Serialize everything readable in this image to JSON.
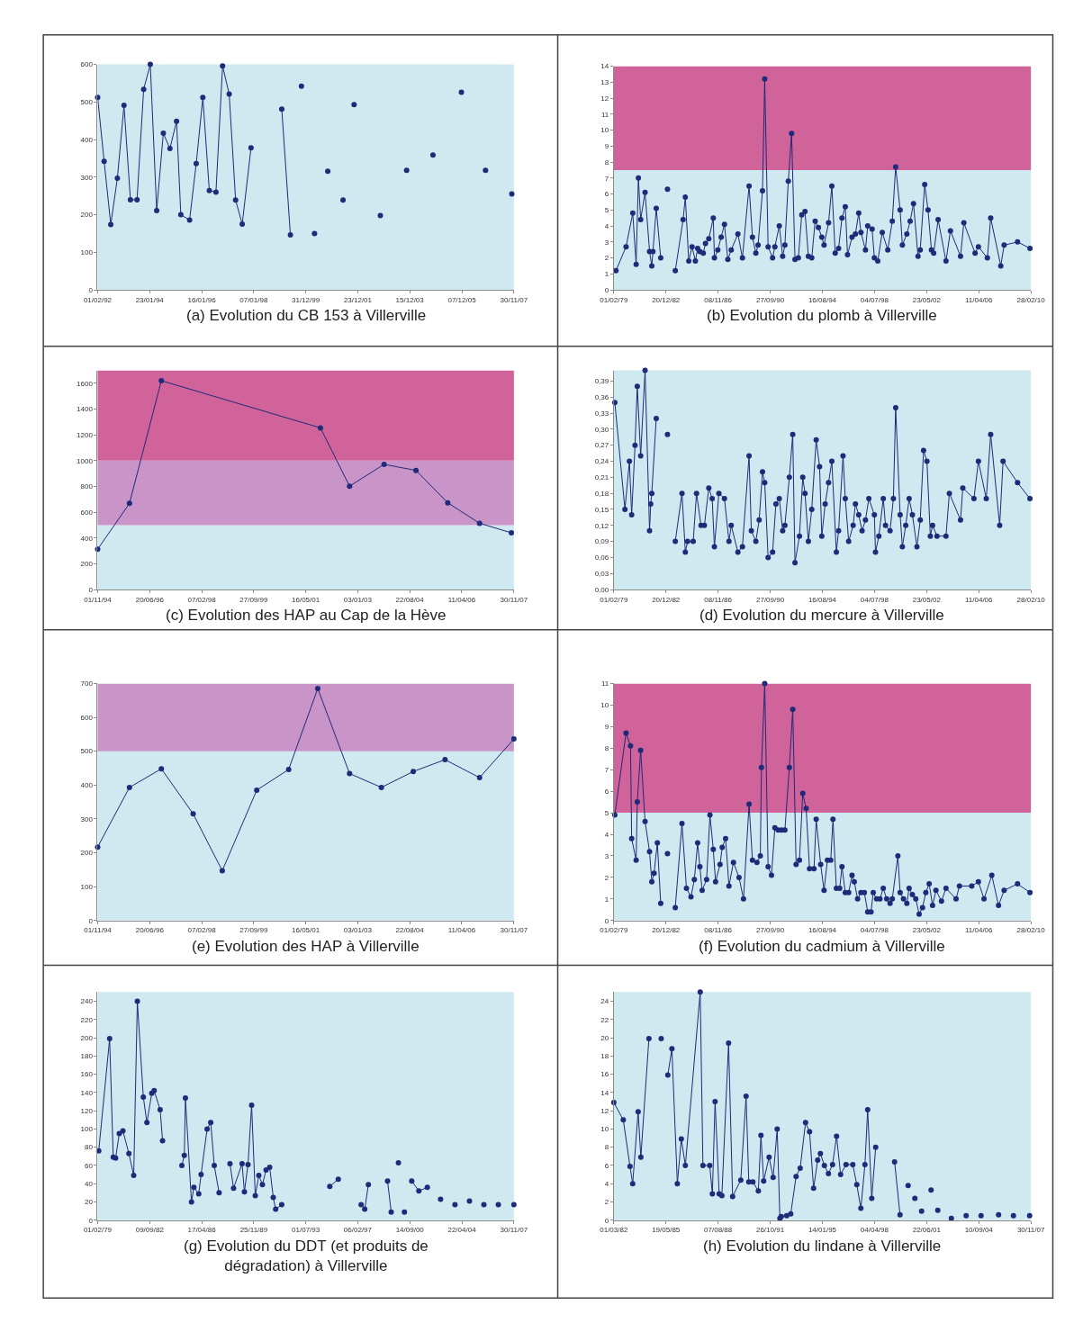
{
  "chart_data": [
    {
      "type": "line",
      "title": "(a) Evolution du CB 153 à Villerville",
      "marker": "circle",
      "line_style": "solid",
      "xlim": [
        "1992-02-01",
        "2007-11-30"
      ],
      "ylim": [
        0,
        600
      ],
      "xticks": [
        {
          "value": "1992-02-01",
          "label": "01/02/92"
        },
        {
          "value": "1994-01-23",
          "label": "23/01/94"
        },
        {
          "value": "1996-01-16",
          "label": "16/01/96"
        },
        {
          "value": "1998-01-07",
          "label": "07/01/98"
        },
        {
          "value": "1999-12-31",
          "label": "31/12/99"
        },
        {
          "value": "2001-12-23",
          "label": "23/12/01"
        },
        {
          "value": "2003-12-15",
          "label": "15/12/03"
        },
        {
          "value": "2005-12-07",
          "label": "07/12/05"
        },
        {
          "value": "2007-11-30",
          "label": "30/11/07"
        }
      ],
      "yticks": [
        0,
        100,
        200,
        300,
        400,
        500,
        600
      ],
      "series": [
        {
          "color": "#1f2a78",
          "x": [
            "1992-02",
            "1992-05",
            "1992-08",
            "1992-11",
            "1993-02",
            "1993-05",
            "1993-08",
            "1993-11",
            "1994-02",
            "1994-05",
            "1994-08",
            "1994-11",
            "1995-02",
            "1995-04",
            "1995-08",
            "1995-11",
            "1996-02",
            "1996-05",
            "1996-08",
            "1996-11",
            "1997-02",
            "1997-05",
            "1997-08",
            "1997-12"
          ],
          "values": [
            512,
            342,
            174,
            297,
            491,
            240,
            240,
            534,
            600,
            211,
            417,
            376,
            449,
            200,
            186,
            336,
            512,
            264,
            260,
            596,
            521,
            239,
            175,
            378
          ]
        },
        {
          "color": "#1f2a78",
          "x": [
            "1999-02",
            "1999-06"
          ],
          "values": [
            481,
            146
          ]
        },
        {
          "type": "scatter",
          "color": "#1f2a78",
          "x": [
            "1999-11",
            "2000-05",
            "2000-11",
            "2001-06",
            "2001-11",
            "2002-11",
            "2003-11",
            "2004-11",
            "2005-12",
            "2006-11",
            "2007-11"
          ],
          "values": [
            542,
            150,
            316,
            239,
            493,
            198,
            318,
            359,
            526,
            318,
            255
          ]
        }
      ]
    },
    {
      "type": "line",
      "title": "(b) Evolution du plomb à Villerville",
      "marker": "circle",
      "line_style": "solid",
      "xlim": [
        "1979-02-01",
        "2010-02-28"
      ],
      "ylim": [
        0,
        14
      ],
      "xticks": [
        {
          "value": "1979-02-01",
          "label": "01/02/79"
        },
        {
          "value": "1982-12-20",
          "label": "20/12/82"
        },
        {
          "value": "1986-11-08",
          "label": "08/11/86"
        },
        {
          "value": "1990-09-27",
          "label": "27/09/90"
        },
        {
          "value": "1994-08-16",
          "label": "16/08/94"
        },
        {
          "value": "1998-07-04",
          "label": "04/07/98"
        },
        {
          "value": "2002-05-23",
          "label": "23/05/02"
        },
        {
          "value": "2006-04-11",
          "label": "11/04/06"
        },
        {
          "value": "2010-02-28",
          "label": "28/02/10"
        }
      ],
      "yticks": [
        0,
        1,
        2,
        3,
        4,
        5,
        6,
        7,
        8,
        9,
        10,
        11,
        12,
        13,
        14
      ],
      "bands": [
        {
          "axis": "y",
          "from": 0,
          "to": 7.5,
          "color": "#cfe9f0"
        },
        {
          "axis": "y",
          "from": 7.5,
          "to": 14,
          "color": "#d0639a"
        }
      ],
      "series": [
        {
          "color": "#1f2a78",
          "x": [
            "1979-04",
            "1980-01",
            "1980-07",
            "1980-10",
            "1980-12",
            "1981-02",
            "1981-06",
            "1981-10",
            "1981-12",
            "1982-01",
            "1982-04",
            "1982-08"
          ],
          "values": [
            1.2,
            2.7,
            4.8,
            1.6,
            7.0,
            4.4,
            6.1,
            2.4,
            1.5,
            2.4,
            5.1,
            2.0
          ]
        },
        {
          "type": "scatter",
          "color": "#1f2a78",
          "x": [
            "1983-02"
          ],
          "values": [
            6.3
          ]
        },
        {
          "color": "#1f2a78",
          "x": [
            "1983-09",
            "1984-04",
            "1984-06",
            "1984-09",
            "1984-12",
            "1985-03",
            "1985-05",
            "1985-07",
            "1985-10",
            "1985-12",
            "1986-03",
            "1986-07",
            "1986-08",
            "1986-11",
            "1987-02",
            "1987-05",
            "1987-08",
            "1987-11",
            "1988-05",
            "1988-09",
            "1989-03",
            "1989-06",
            "1989-09",
            "1989-11",
            "1990-03",
            "1990-05",
            "1990-08",
            "1990-12",
            "1991-02",
            "1991-06",
            "1991-09",
            "1991-11",
            "1992-02",
            "1992-05",
            "1992-08",
            "1992-11",
            "1993-02",
            "1993-05",
            "1993-08",
            "1993-11",
            "1994-02",
            "1994-05",
            "1994-08",
            "1994-10",
            "1995-02",
            "1995-05",
            "1995-08",
            "1995-11",
            "1996-02",
            "1996-05",
            "1996-07",
            "1996-11",
            "1997-02",
            "1997-05",
            "1997-07",
            "1997-11",
            "1998-01",
            "1998-05",
            "1998-07",
            "1998-10",
            "1999-02",
            "1999-07",
            "1999-11",
            "2000-02",
            "2000-06",
            "2000-08",
            "2000-12",
            "2001-03",
            "2001-06",
            "2001-10",
            "2001-12",
            "2002-04",
            "2002-07",
            "2002-10",
            "2002-12",
            "2003-04",
            "2003-11",
            "2004-03",
            "2004-12",
            "2005-03",
            "2006-01",
            "2006-04",
            "2006-12",
            "2007-03",
            "2007-12",
            "2008-03",
            "2009-03",
            "2010-02"
          ],
          "values": [
            1.2,
            4.4,
            5.8,
            1.8,
            2.7,
            1.8,
            2.6,
            2.4,
            2.3,
            2.9,
            3.2,
            4.5,
            2.0,
            2.5,
            3.3,
            4.1,
            1.9,
            2.5,
            3.5,
            2.0,
            6.5,
            3.3,
            2.3,
            2.8,
            6.2,
            13.2,
            2.7,
            2.0,
            2.7,
            4.0,
            2.1,
            2.8,
            6.8,
            9.8,
            1.9,
            2.0,
            4.7,
            4.9,
            2.1,
            2.0,
            4.3,
            3.9,
            3.3,
            2.8,
            4.2,
            6.5,
            2.3,
            2.6,
            4.5,
            5.2,
            2.2,
            3.3,
            3.5,
            4.8,
            3.6,
            2.5,
            4.0,
            3.8,
            2.0,
            1.8,
            3.6,
            2.5,
            4.3,
            7.7,
            5.0,
            2.8,
            3.5,
            4.3,
            5.4,
            2.1,
            2.5,
            6.6,
            5.0,
            2.5,
            2.3,
            4.4,
            1.8,
            3.7,
            2.1,
            4.2,
            2.3,
            2.7,
            2.0,
            4.5,
            1.5,
            2.8,
            3.0,
            2.6
          ]
        }
      ]
    },
    {
      "type": "line",
      "title": "(c) Evolution des HAP au Cap de la Hève",
      "marker": "circle",
      "line_style": "solid",
      "xlim": [
        "1994-11-01",
        "2007-11-30"
      ],
      "ylim": [
        0,
        1700
      ],
      "xticks": [
        {
          "value": "1994-11-01",
          "label": "01/11/94"
        },
        {
          "value": "1996-06-20",
          "label": "20/06/96"
        },
        {
          "value": "1998-02-07",
          "label": "07/02/98"
        },
        {
          "value": "1999-09-27",
          "label": "27/09/99"
        },
        {
          "value": "2001-05-16",
          "label": "16/05/01"
        },
        {
          "value": "2003-01-03",
          "label": "03/01/03"
        },
        {
          "value": "2004-08-22",
          "label": "22/08/04"
        },
        {
          "value": "2006-04-11",
          "label": "11/04/06"
        },
        {
          "value": "2007-11-30",
          "label": "30/11/07"
        }
      ],
      "yticks": [
        0,
        200,
        400,
        600,
        800,
        1000,
        1200,
        1400,
        1600
      ],
      "bands": [
        {
          "axis": "y",
          "from": 0,
          "to": 500,
          "color": "#cfe9f0"
        },
        {
          "axis": "y",
          "from": 500,
          "to": 1000,
          "color": "#c994c7"
        },
        {
          "axis": "y",
          "from": 1000,
          "to": 1700,
          "color": "#d0639a"
        }
      ],
      "series": [
        {
          "color": "#1f2a78",
          "x": [
            "1994-11",
            "1995-11",
            "1996-11",
            "2001-11",
            "2002-10",
            "2003-11",
            "2004-11",
            "2005-11",
            "2006-11",
            "2007-11"
          ],
          "values": [
            313,
            668,
            1620,
            1254,
            802,
            971,
            924,
            673,
            514,
            440
          ]
        }
      ]
    },
    {
      "type": "line",
      "title": "(d) Evolution du mercure à Villerville",
      "marker": "circle",
      "line_style": "solid",
      "xlim": [
        "1979-02-01",
        "2010-02-28"
      ],
      "ylim": [
        0,
        0.41
      ],
      "xticks": [
        {
          "value": "1979-02-01",
          "label": "01/02/79"
        },
        {
          "value": "1982-12-20",
          "label": "20/12/82"
        },
        {
          "value": "1986-11-08",
          "label": "08/11/86"
        },
        {
          "value": "1990-09-27",
          "label": "27/09/90"
        },
        {
          "value": "1994-08-16",
          "label": "16/08/94"
        },
        {
          "value": "1998-07-04",
          "label": "04/07/98"
        },
        {
          "value": "2002-05-23",
          "label": "23/05/02"
        },
        {
          "value": "2006-04-11",
          "label": "11/04/06"
        },
        {
          "value": "2010-02-28",
          "label": "28/02/10"
        }
      ],
      "yticks": [
        {
          "value": 0,
          "label": "0,00"
        },
        {
          "value": 0.03,
          "label": "0,03"
        },
        {
          "value": 0.06,
          "label": "0,06"
        },
        {
          "value": 0.09,
          "label": "0,09"
        },
        {
          "value": 0.12,
          "label": "0,12"
        },
        {
          "value": 0.15,
          "label": "0,15"
        },
        {
          "value": 0.18,
          "label": "0,18"
        },
        {
          "value": 0.21,
          "label": "0,21"
        },
        {
          "value": 0.24,
          "label": "0,24"
        },
        {
          "value": 0.27,
          "label": "0,27"
        },
        {
          "value": 0.3,
          "label": "0,30"
        },
        {
          "value": 0.33,
          "label": "0,33"
        },
        {
          "value": 0.36,
          "label": "0,36"
        },
        {
          "value": 0.39,
          "label": "0,39"
        }
      ],
      "series": [
        {
          "color": "#1f2a78",
          "x": [
            "1979-03",
            "1979-12",
            "1980-04",
            "1980-06",
            "1980-09",
            "1980-11",
            "1981-02",
            "1981-06",
            "1981-10",
            "1981-11",
            "1981-12",
            "1982-04"
          ],
          "values": [
            0.35,
            0.15,
            0.24,
            0.14,
            0.27,
            0.38,
            0.25,
            0.41,
            0.11,
            0.16,
            0.18,
            0.32
          ]
        },
        {
          "type": "scatter",
          "color": "#1f2a78",
          "x": [
            "1983-02"
          ],
          "values": [
            0.29
          ]
        },
        {
          "color": "#1f2a78",
          "x": [
            "1983-09",
            "1984-03",
            "1984-06",
            "1984-08",
            "1985-01",
            "1985-04",
            "1985-08",
            "1985-11",
            "1986-03",
            "1986-06",
            "1986-08",
            "1986-12",
            "1987-05",
            "1987-09",
            "1987-11",
            "1988-05",
            "1988-09",
            "1989-03",
            "1989-05",
            "1989-09",
            "1989-12",
            "1990-03",
            "1990-05",
            "1990-08",
            "1990-12",
            "1991-03",
            "1991-06",
            "1991-09",
            "1991-11",
            "1992-03",
            "1992-06",
            "1992-08",
            "1992-12",
            "1993-03",
            "1993-05",
            "1993-08",
            "1993-11",
            "1994-03",
            "1994-06",
            "1994-08",
            "1994-11",
            "1995-02",
            "1995-05",
            "1995-09",
            "1995-11",
            "1996-03",
            "1996-05",
            "1996-08",
            "1996-12",
            "1997-02",
            "1997-05",
            "1997-08",
            "1997-11",
            "1998-02",
            "1998-07",
            "1998-08",
            "1998-11",
            "1999-03",
            "1999-05",
            "1999-09",
            "1999-12",
            "2000-02",
            "2000-06",
            "2000-08",
            "2000-11",
            "2001-02",
            "2001-05",
            "2001-09",
            "2001-12",
            "2002-03",
            "2002-06",
            "2002-09",
            "2002-11",
            "2003-03",
            "2003-11",
            "2004-02",
            "2004-12",
            "2005-02",
            "2005-12",
            "2006-04",
            "2006-11",
            "2007-03",
            "2007-11",
            "2008-02",
            "2009-03",
            "2010-02"
          ],
          "values": [
            0.09,
            0.18,
            0.07,
            0.09,
            0.09,
            0.18,
            0.12,
            0.12,
            0.19,
            0.17,
            0.08,
            0.18,
            0.17,
            0.09,
            0.12,
            0.07,
            0.08,
            0.25,
            0.11,
            0.09,
            0.13,
            0.22,
            0.2,
            0.06,
            0.07,
            0.16,
            0.17,
            0.11,
            0.12,
            0.21,
            0.29,
            0.05,
            0.1,
            0.21,
            0.18,
            0.09,
            0.15,
            0.28,
            0.23,
            0.1,
            0.16,
            0.2,
            0.24,
            0.07,
            0.11,
            0.25,
            0.17,
            0.09,
            0.12,
            0.16,
            0.14,
            0.11,
            0.13,
            0.17,
            0.14,
            0.07,
            0.1,
            0.17,
            0.12,
            0.11,
            0.17,
            0.34,
            0.14,
            0.08,
            0.12,
            0.17,
            0.14,
            0.08,
            0.13,
            0.26,
            0.24,
            0.1,
            0.12,
            0.1,
            0.1,
            0.18,
            0.13,
            0.19,
            0.17,
            0.24,
            0.17,
            0.29,
            0.12,
            0.24,
            0.2,
            0.17
          ]
        }
      ]
    },
    {
      "type": "line",
      "title": "(e) Evolution des HAP à Villerville",
      "marker": "circle",
      "line_style": "solid",
      "xlim": [
        "1994-11-01",
        "2007-11-30"
      ],
      "ylim": [
        0,
        700
      ],
      "xticks": [
        {
          "value": "1994-11-01",
          "label": "01/11/94"
        },
        {
          "value": "1996-06-20",
          "label": "20/06/96"
        },
        {
          "value": "1998-02-07",
          "label": "07/02/98"
        },
        {
          "value": "1999-09-27",
          "label": "27/09/99"
        },
        {
          "value": "2001-05-16",
          "label": "16/05/01"
        },
        {
          "value": "2003-01-03",
          "label": "03/01/03"
        },
        {
          "value": "2004-08-22",
          "label": "22/08/04"
        },
        {
          "value": "2006-04-11",
          "label": "11/04/06"
        },
        {
          "value": "2007-11-30",
          "label": "30/11/07"
        }
      ],
      "yticks": [
        0,
        100,
        200,
        300,
        400,
        500,
        600,
        700
      ],
      "bands": [
        {
          "axis": "y",
          "from": 0,
          "to": 500,
          "color": "#cfe9f0"
        },
        {
          "axis": "y",
          "from": 500,
          "to": 700,
          "color": "#c994c7"
        }
      ],
      "series": [
        {
          "color": "#1f2a78",
          "x": [
            "1994-11",
            "1995-11",
            "1996-11",
            "1997-11",
            "1998-10",
            "1999-11",
            "2000-11",
            "2001-10",
            "2002-10",
            "2003-10",
            "2004-10",
            "2005-10",
            "2006-11",
            "2007-11-30"
          ],
          "values": [
            217,
            393,
            448,
            315,
            147,
            385,
            446,
            685,
            434,
            393,
            440,
            475,
            422,
            536
          ]
        }
      ]
    },
    {
      "type": "line",
      "title": "(f) Evolution du cadmium à Villerville",
      "marker": "circle",
      "line_style": "solid",
      "xlim": [
        "1979-02-01",
        "2010-02-28"
      ],
      "ylim": [
        0,
        11
      ],
      "xticks": [
        {
          "value": "1979-02-01",
          "label": "01/02/79"
        },
        {
          "value": "1982-12-20",
          "label": "20/12/82"
        },
        {
          "value": "1986-11-08",
          "label": "08/11/86"
        },
        {
          "value": "1990-09-27",
          "label": "27/09/90"
        },
        {
          "value": "1994-08-16",
          "label": "16/08/94"
        },
        {
          "value": "1998-07-04",
          "label": "04/07/98"
        },
        {
          "value": "2002-05-23",
          "label": "23/05/02"
        },
        {
          "value": "2006-04-11",
          "label": "11/04/06"
        },
        {
          "value": "2010-02-28",
          "label": "28/02/10"
        }
      ],
      "yticks": [
        0,
        1,
        2,
        3,
        4,
        5,
        6,
        7,
        8,
        9,
        10,
        11
      ],
      "bands": [
        {
          "axis": "y",
          "from": 0,
          "to": 5,
          "color": "#cfe9f0"
        },
        {
          "axis": "y",
          "from": 5,
          "to": 11,
          "color": "#d0639a"
        }
      ],
      "series": [
        {
          "color": "#1f2a78",
          "x": [
            "1979-03",
            "1980-01",
            "1980-05",
            "1980-06",
            "1980-10",
            "1980-11",
            "1981-02",
            "1981-06",
            "1981-10",
            "1981-12",
            "1982-02",
            "1982-05",
            "1982-08"
          ],
          "values": [
            4.9,
            8.7,
            8.1,
            3.8,
            2.8,
            5.5,
            7.9,
            4.6,
            3.2,
            1.8,
            2.2,
            3.6,
            0.8
          ]
        },
        {
          "type": "scatter",
          "color": "#1f2a78",
          "x": [
            "1983-02"
          ],
          "values": [
            3.1
          ]
        },
        {
          "color": "#1f2a78",
          "x": [
            "1983-09",
            "1984-03",
            "1984-07",
            "1984-11",
            "1985-02",
            "1985-05",
            "1985-07",
            "1985-09",
            "1986-01",
            "1986-04",
            "1986-07",
            "1986-09",
            "1987-01",
            "1987-03",
            "1987-06",
            "1987-09",
            "1988-01",
            "1988-06",
            "1988-10",
            "1989-03",
            "1989-06",
            "1989-10",
            "1990-01",
            "1990-02",
            "1990-05",
            "1990-08",
            "1990-11",
            "1991-02",
            "1991-05",
            "1991-08",
            "1991-11",
            "1992-03",
            "1992-06",
            "1992-09",
            "1992-12",
            "1993-03",
            "1993-06",
            "1993-09",
            "1994-01",
            "1994-03",
            "1994-07",
            "1994-10",
            "1995-01",
            "1995-04",
            "1995-06",
            "1995-09",
            "1995-12",
            "1996-02",
            "1996-05",
            "1996-08",
            "1996-11",
            "1997-01",
            "1997-04",
            "1997-07",
            "1997-10",
            "1998-01",
            "1998-04",
            "1998-06",
            "1998-09",
            "1998-12",
            "1999-03",
            "1999-06",
            "1999-09",
            "1999-11",
            "2000-04",
            "2000-06",
            "2000-09",
            "2000-12",
            "2001-02",
            "2001-05",
            "2001-08",
            "2001-11",
            "2002-02",
            "2002-05",
            "2002-08",
            "2002-11",
            "2003-02",
            "2003-07",
            "2003-11",
            "2004-08",
            "2004-11",
            "2005-10",
            "2006-04",
            "2006-09",
            "2007-04",
            "2007-10",
            "2008-03",
            "2009-03",
            "2010-02"
          ],
          "values": [
            0.6,
            4.5,
            1.5,
            1.1,
            1.9,
            3.6,
            2.5,
            1.4,
            1.9,
            4.9,
            3.3,
            1.8,
            2.6,
            3.4,
            3.8,
            1.6,
            2.7,
            2.0,
            1.0,
            5.4,
            2.8,
            2.7,
            3.0,
            7.1,
            11.0,
            2.5,
            2.1,
            4.3,
            4.2,
            4.2,
            4.2,
            7.1,
            9.8,
            2.6,
            2.8,
            5.9,
            5.2,
            2.4,
            2.4,
            4.7,
            2.6,
            1.4,
            2.8,
            2.8,
            4.7,
            1.5,
            1.5,
            2.5,
            1.3,
            1.3,
            2.1,
            1.8,
            1.0,
            1.3,
            1.3,
            0.4,
            0.4,
            1.3,
            1.0,
            1.0,
            1.5,
            1.0,
            0.8,
            1.0,
            3.0,
            1.3,
            1.0,
            0.8,
            1.5,
            1.2,
            1.0,
            0.3,
            0.6,
            1.3,
            1.7,
            0.7,
            1.4,
            0.9,
            1.5,
            1.0,
            1.6,
            1.6,
            1.8,
            1.0,
            2.1,
            0.7,
            1.4,
            1.7,
            1.3
          ]
        }
      ]
    },
    {
      "type": "line",
      "title": "(g) Evolution du DDT (et produits de dégradation) à Villerville",
      "marker": "circle",
      "line_style": "solid",
      "xlim": [
        "1979-02-01",
        "2007-11-30"
      ],
      "ylim": [
        0,
        250
      ],
      "xticks": [
        {
          "value": "1979-02-01",
          "label": "01/02/79"
        },
        {
          "value": "1982-09-09",
          "label": "09/09/82"
        },
        {
          "value": "1986-04-17",
          "label": "17/04/86"
        },
        {
          "value": "1989-11-25",
          "label": "25/11/89"
        },
        {
          "value": "1993-07-01",
          "label": "01/07/93"
        },
        {
          "value": "1997-02-06",
          "label": "06/02/97"
        },
        {
          "value": "2000-09-14",
          "label": "14/09/00"
        },
        {
          "value": "2004-04-22",
          "label": "22/04/04"
        },
        {
          "value": "2007-11-30",
          "label": "30/11/07"
        }
      ],
      "yticks": [
        0,
        20,
        40,
        60,
        80,
        100,
        120,
        140,
        160,
        180,
        200,
        220,
        240
      ],
      "series": [
        {
          "color": "#1f2a78",
          "x": [
            "1979-03",
            "1979-12",
            "1980-03",
            "1980-05",
            "1980-08",
            "1980-11",
            "1981-04",
            "1981-08",
            "1981-11",
            "1982-04",
            "1982-07",
            "1982-11",
            "1983-01",
            "1983-06",
            "1983-08"
          ],
          "values": [
            76,
            199,
            69,
            68,
            95,
            98,
            73,
            49,
            240,
            135,
            107,
            139,
            142,
            121,
            87
          ]
        },
        {
          "color": "#1f2a78",
          "x": [
            "1984-12",
            "1985-02",
            "1985-03",
            "1985-08",
            "1985-10",
            "1986-02",
            "1986-04",
            "1986-09",
            "1986-12",
            "1987-03",
            "1987-07"
          ],
          "values": [
            60,
            71,
            134,
            20,
            36,
            29,
            50,
            100,
            107,
            60,
            30
          ]
        },
        {
          "color": "#1f2a78",
          "x": [
            "1988-04",
            "1988-07",
            "1989-02",
            "1989-04",
            "1989-07",
            "1989-10",
            "1990-01",
            "1990-04",
            "1990-07",
            "1990-10",
            "1991-01",
            "1991-04",
            "1991-06",
            "1991-11"
          ],
          "values": [
            62,
            35,
            62,
            31,
            61,
            126,
            27,
            49,
            39,
            55,
            58,
            25,
            12,
            17
          ]
        },
        {
          "color": "#1f2a78",
          "x": [
            "1995-03",
            "1995-10"
          ],
          "values": [
            37,
            45
          ]
        },
        {
          "color": "#1f2a78",
          "x": [
            "1997-05",
            "1997-08",
            "1997-11"
          ],
          "values": [
            17,
            12,
            39
          ]
        },
        {
          "color": "#1f2a78",
          "x": [
            "1999-03",
            "1999-06"
          ],
          "values": [
            43,
            9
          ]
        },
        {
          "type": "scatter",
          "color": "#1f2a78",
          "x": [
            "1999-12",
            "2000-05"
          ],
          "values": [
            63,
            9
          ]
        },
        {
          "color": "#1f2a78",
          "x": [
            "2000-11",
            "2001-05",
            "2001-12"
          ],
          "values": [
            43,
            32,
            36
          ]
        },
        {
          "type": "scatter",
          "color": "#1f2a78",
          "x": [
            "2002-11",
            "2003-11",
            "2004-11",
            "2005-11",
            "2006-11",
            "2007-11-30"
          ],
          "values": [
            23,
            17,
            21,
            17,
            17,
            17
          ]
        }
      ]
    },
    {
      "type": "line",
      "title": "(h) Evolution du lindane à Villerville",
      "marker": "circle",
      "line_style": "solid",
      "xlim": [
        "1982-03-01",
        "2007-11-30"
      ],
      "ylim": [
        0,
        25
      ],
      "xticks": [
        {
          "value": "1982-03-01",
          "label": "01/03/82"
        },
        {
          "value": "1985-05-19",
          "label": "19/05/85"
        },
        {
          "value": "1988-08-07",
          "label": "07/08/88"
        },
        {
          "value": "1991-10-26",
          "label": "26/10/91"
        },
        {
          "value": "1995-01-14",
          "label": "14/01/95"
        },
        {
          "value": "1998-04-04",
          "label": "04/04/98"
        },
        {
          "value": "2001-06-22",
          "label": "22/06/01"
        },
        {
          "value": "2004-09-10",
          "label": "10/09/04"
        },
        {
          "value": "2007-11-30",
          "label": "30/11/07"
        }
      ],
      "yticks": [
        0,
        2,
        4,
        6,
        8,
        10,
        12,
        14,
        16,
        18,
        20,
        22,
        24
      ],
      "series": [
        {
          "color": "#1f2a78",
          "x": [
            "1982-03",
            "1982-10",
            "1983-03",
            "1983-05",
            "1983-09",
            "1983-11",
            "1984-05"
          ],
          "values": [
            12.9,
            11.0,
            5.9,
            4.0,
            11.9,
            6.9,
            19.9
          ]
        },
        {
          "type": "scatter",
          "color": "#1f2a78",
          "x": [
            "1985-02"
          ],
          "values": [
            19.9
          ]
        },
        {
          "color": "#1f2a78",
          "x": [
            "1985-07",
            "1985-10",
            "1986-02",
            "1986-05",
            "1986-08",
            "1987-07",
            "1987-09",
            "1988-02",
            "1988-04",
            "1988-06",
            "1988-09",
            "1988-11",
            "1989-04",
            "1989-07",
            "1990-01",
            "1990-05",
            "1990-07",
            "1990-10",
            "1991-02",
            "1991-04",
            "1991-06",
            "1991-10",
            "1992-01",
            "1992-04",
            "1992-06",
            "1992-07",
            "1992-11",
            "1993-02",
            "1993-06",
            "1993-09",
            "1994-01",
            "1994-04",
            "1994-07",
            "1994-10",
            "1994-12",
            "1995-03",
            "1995-06",
            "1995-09",
            "1995-12",
            "1996-03",
            "1996-07",
            "1996-12",
            "1997-03",
            "1997-06",
            "1997-09",
            "1997-11",
            "1998-02",
            "1998-05"
          ],
          "values": [
            15.9,
            18.8,
            4.0,
            8.9,
            6.0,
            25.0,
            6.0,
            6.0,
            2.9,
            13.0,
            2.9,
            2.7,
            19.4,
            2.6,
            4.4,
            13.6,
            4.2,
            4.2,
            3.2,
            9.3,
            4.3,
            6.9,
            4.7,
            10.0,
            0.2,
            0.4,
            0.5,
            0.7,
            4.8,
            5.7,
            10.7,
            9.7,
            3.5,
            6.6,
            7.3,
            6.0,
            5.1,
            6.1,
            9.2,
            5.0,
            6.1,
            6.1,
            3.9,
            1.3,
            6.1,
            12.1,
            2.4,
            8.0
          ]
        },
        {
          "color": "#1f2a78",
          "x": [
            "1999-07",
            "1999-11"
          ],
          "values": [
            6.4,
            0.6
          ]
        },
        {
          "type": "scatter",
          "color": "#1f2a78",
          "x": [
            "2000-05",
            "2000-10",
            "2001-03",
            "2001-10",
            "2002-03",
            "2003-01",
            "2003-12",
            "2004-11",
            "2005-12",
            "2006-11",
            "2007-11"
          ],
          "values": [
            3.8,
            2.4,
            1.0,
            3.3,
            1.1,
            0.2,
            0.5,
            0.5,
            0.6,
            0.5,
            0.5
          ]
        }
      ]
    }
  ]
}
